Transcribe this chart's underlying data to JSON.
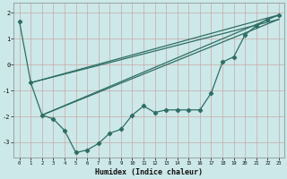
{
  "xlabel": "Humidex (Indice chaleur)",
  "bg_color": "#cce8e8",
  "grid_color": "#b0d4d4",
  "line_color": "#2e6e65",
  "xlim": [
    -0.5,
    23.5
  ],
  "ylim": [
    -3.6,
    2.4
  ],
  "xticks": [
    0,
    1,
    2,
    3,
    4,
    5,
    6,
    7,
    8,
    9,
    10,
    11,
    12,
    13,
    14,
    15,
    16,
    17,
    18,
    19,
    20,
    21,
    22,
    23
  ],
  "yticks": [
    -3,
    -2,
    -1,
    0,
    1,
    2
  ],
  "series_main_x": [
    0,
    1,
    2,
    3,
    4,
    5,
    6,
    7,
    8,
    9,
    10,
    11,
    12,
    13,
    14,
    15,
    16,
    17,
    18,
    19,
    20,
    21,
    22,
    23
  ],
  "series_main_y": [
    1.65,
    -0.7,
    -1.95,
    -2.1,
    -2.55,
    -3.4,
    -3.3,
    -3.05,
    -2.65,
    -2.5,
    -1.95,
    -1.6,
    -1.85,
    -1.75,
    -1.75,
    -1.75,
    -1.75,
    -1.1,
    0.1,
    0.3,
    1.15,
    1.5,
    1.75,
    1.92
  ],
  "reg_lines": [
    {
      "x": [
        1,
        23
      ],
      "y": [
        -0.7,
        1.92
      ]
    },
    {
      "x": [
        1,
        23
      ],
      "y": [
        -0.7,
        1.75
      ]
    },
    {
      "x": [
        2,
        23
      ],
      "y": [
        -1.95,
        1.92
      ]
    },
    {
      "x": [
        2,
        23
      ],
      "y": [
        -1.95,
        1.75
      ]
    }
  ]
}
